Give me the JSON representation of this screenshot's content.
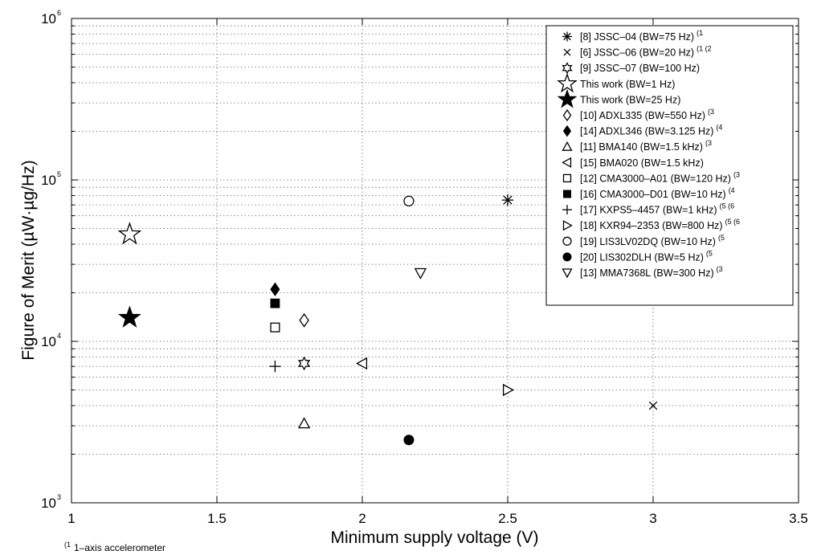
{
  "chart_data": {
    "type": "scatter",
    "title": "",
    "xlabel": "Minimum supply voltage (V)",
    "ylabel": "Figure of Merit (µW·µg/Hz)",
    "xlim": [
      1,
      3.5
    ],
    "ylim": [
      1000,
      1000000
    ],
    "yscale": "log",
    "grid": true,
    "legend_position": "top-right",
    "x_ticks": [
      1,
      1.5,
      2,
      2.5,
      3,
      3.5
    ],
    "x_tick_labels": [
      "1",
      "1.5",
      "2",
      "2.5",
      "3",
      "3.5"
    ],
    "y_tick_labels": [
      {
        "value": 1000,
        "base": "10",
        "exp": "3"
      },
      {
        "value": 10000,
        "base": "10",
        "exp": "4"
      },
      {
        "value": 100000,
        "base": "10",
        "exp": "5"
      },
      {
        "value": 1000000,
        "base": "10",
        "exp": "6"
      }
    ],
    "series": [
      {
        "name": "[8] JSSC–04 (BW=75 Hz)",
        "sup": "(1",
        "marker": "asterisk",
        "points": [
          [
            2.5,
            75000
          ]
        ]
      },
      {
        "name": "[6] JSSC–06 (BW=20 Hz)",
        "sup": "(1 (2",
        "marker": "x",
        "points": [
          [
            3.0,
            4000
          ]
        ]
      },
      {
        "name": "[9] JSSC–07 (BW=100 Hz)",
        "sup": "",
        "marker": "hexagram",
        "points": [
          [
            1.8,
            7300
          ]
        ]
      },
      {
        "name": "This work (BW=1 Hz)",
        "sup": "",
        "marker": "star-open",
        "points": [
          [
            1.2,
            46000
          ]
        ]
      },
      {
        "name": "This work (BW=25 Hz)",
        "sup": "",
        "marker": "star-filled",
        "points": [
          [
            1.2,
            14000
          ]
        ]
      },
      {
        "name": "[10] ADXL335 (BW=550 Hz)",
        "sup": "(3",
        "marker": "diamond-open",
        "points": [
          [
            1.8,
            13500
          ]
        ]
      },
      {
        "name": "[14] ADXL346 (BW=3.125 Hz)",
        "sup": "(4",
        "marker": "diamond-filled",
        "points": [
          [
            1.7,
            21000
          ]
        ]
      },
      {
        "name": "[11] BMA140 (BW=1.5 kHz)",
        "sup": "(3",
        "marker": "triangle-up",
        "points": [
          [
            1.8,
            3100
          ]
        ]
      },
      {
        "name": "[15] BMA020 (BW=1.5 kHz)",
        "sup": "",
        "marker": "triangle-left",
        "points": [
          [
            2.0,
            7300
          ]
        ]
      },
      {
        "name": "[12] CMA3000–A01 (BW=120 Hz)",
        "sup": "(3",
        "marker": "square-open",
        "points": [
          [
            1.7,
            12200
          ]
        ]
      },
      {
        "name": "[16] CMA3000–D01 (BW=10 Hz)",
        "sup": "(4",
        "marker": "square-filled",
        "points": [
          [
            1.7,
            17200
          ]
        ]
      },
      {
        "name": "[17] KXPS5–4457 (BW=1 kHz)",
        "sup": "(5 (6",
        "marker": "plus",
        "points": [
          [
            1.7,
            7000
          ]
        ]
      },
      {
        "name": "[18] KXR94–2353 (BW=800 Hz)",
        "sup": "(5 (6",
        "marker": "triangle-right",
        "points": [
          [
            2.5,
            5000
          ]
        ]
      },
      {
        "name": "[19] LIS3LV02DQ (BW=10 Hz)",
        "sup": "(5",
        "marker": "circle-open",
        "points": [
          [
            2.16,
            74000
          ]
        ]
      },
      {
        "name": "[20] LIS302DLH (BW=5 Hz)",
        "sup": "(5",
        "marker": "circle-filled",
        "points": [
          [
            2.16,
            2450
          ]
        ]
      },
      {
        "name": "[13] MMA7368L (BW=300 Hz)",
        "sup": "(3",
        "marker": "triangle-down",
        "points": [
          [
            2.2,
            26500
          ]
        ]
      }
    ],
    "footnote": {
      "sup": "(1",
      "text": "1–axis accelerometer"
    }
  }
}
